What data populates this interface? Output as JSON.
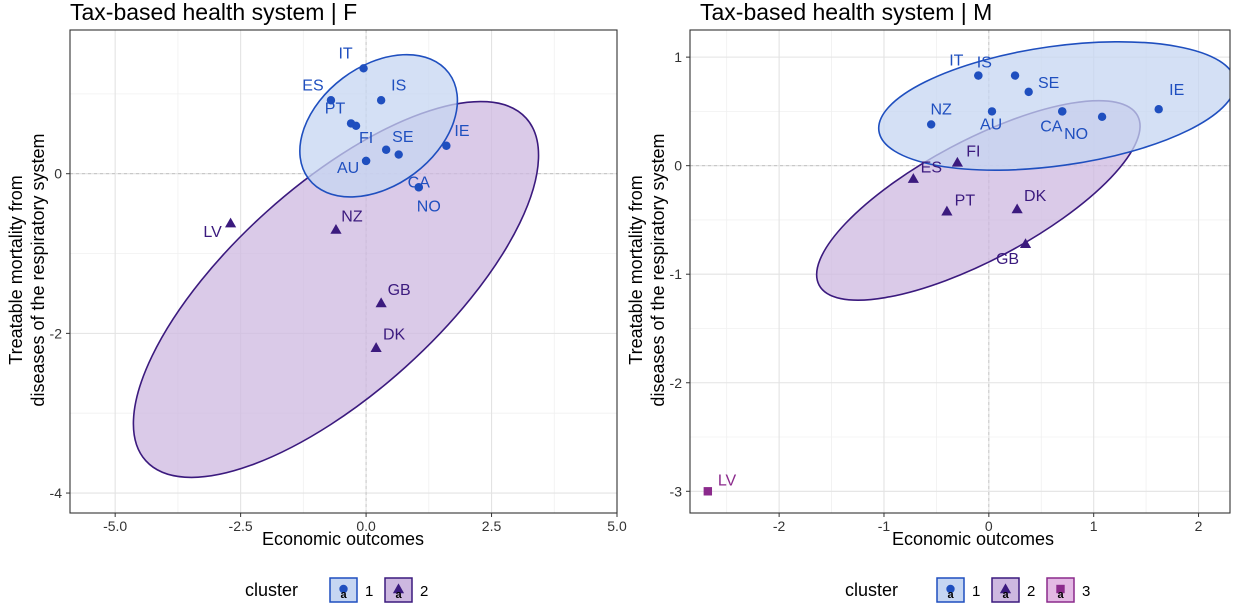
{
  "clusters": {
    "1": {
      "color": "#1f4fbf",
      "fill": "#c6d6f2",
      "shape": "circle"
    },
    "2": {
      "color": "#3b1a7e",
      "fill": "#cdb8e0",
      "shape": "triangle"
    },
    "3": {
      "color": "#8b2a8c",
      "fill": "#e3b9e4",
      "shape": "square"
    }
  },
  "chart_data": [
    {
      "type": "scatter",
      "title": "Tax-based health system | F",
      "xlabel": "Economic outcomes",
      "ylabel": "Treatable mortality from diseases of the respiratory system",
      "xlim": [
        -5.9,
        5.0
      ],
      "ylim": [
        -4.25,
        1.8
      ],
      "xticks": [
        -5.0,
        -2.5,
        0.0,
        2.5,
        5.0
      ],
      "xtick_labels": [
        "-5.0",
        "-2.5",
        "0.0",
        "2.5",
        "5.0"
      ],
      "yticks": [
        -4,
        -2,
        0
      ],
      "ytick_labels": [
        "-4",
        "-2",
        "0"
      ],
      "grid": true,
      "legend": {
        "title": "cluster",
        "entries": [
          "1",
          "2"
        ],
        "position": "bottom"
      },
      "ellipses": [
        {
          "cluster": "1",
          "center": [
            0.25,
            0.6
          ],
          "rx": 1.75,
          "ry": 0.83,
          "angle_deg": -37
        },
        {
          "cluster": "2",
          "center": [
            -0.6,
            -1.45
          ],
          "rx": 5.1,
          "ry": 1.45,
          "angle_deg": -42
        }
      ],
      "points": [
        {
          "label": "IT",
          "x": -0.05,
          "y": 1.32,
          "cluster": "1"
        },
        {
          "label": "ES",
          "x": -0.7,
          "y": 0.92,
          "cluster": "1"
        },
        {
          "label": "IS",
          "x": 0.3,
          "y": 0.92,
          "cluster": "1"
        },
        {
          "label": "PT",
          "x": -0.3,
          "y": 0.63,
          "cluster": "1"
        },
        {
          "label": "",
          "x": -0.2,
          "y": 0.6,
          "cluster": "1"
        },
        {
          "label": "SE",
          "x": 0.4,
          "y": 0.3,
          "cluster": "1"
        },
        {
          "label": "",
          "x": 0.65,
          "y": 0.24,
          "cluster": "1"
        },
        {
          "label": "FI",
          "x": 0.0,
          "y": 0.16,
          "cluster": "1"
        },
        {
          "label": "IE",
          "x": 1.6,
          "y": 0.35,
          "cluster": "1"
        },
        {
          "label": "CA",
          "x": 1.05,
          "y": -0.17,
          "cluster": "1"
        },
        {
          "label": "AU",
          "x": 0.0,
          "y": 0.16,
          "cluster": "1"
        },
        {
          "label": "NO",
          "x": 1.05,
          "y": -0.17,
          "cluster": "1"
        },
        {
          "label": "LV",
          "x": -2.7,
          "y": -0.62,
          "cluster": "2"
        },
        {
          "label": "NZ",
          "x": -0.6,
          "y": -0.7,
          "cluster": "2"
        },
        {
          "label": "GB",
          "x": 0.3,
          "y": -1.62,
          "cluster": "2"
        },
        {
          "label": "DK",
          "x": 0.2,
          "y": -2.18,
          "cluster": "2"
        }
      ]
    },
    {
      "type": "scatter",
      "title": "Tax-based health system | M",
      "xlabel": "Economic outcomes",
      "ylabel": "Treatable mortality from diseases of the respiratory system",
      "xlim": [
        -2.85,
        2.3
      ],
      "ylim": [
        -3.2,
        1.25
      ],
      "xticks": [
        -2,
        -1,
        0,
        1,
        2
      ],
      "xtick_labels": [
        "-2",
        "-1",
        "0",
        "1",
        "2"
      ],
      "yticks": [
        -3,
        -2,
        -1,
        0,
        1
      ],
      "ytick_labels": [
        "-3",
        "-2",
        "-1",
        "0",
        "1"
      ],
      "grid": true,
      "legend": {
        "title": "cluster",
        "entries": [
          "1",
          "2",
          "3"
        ],
        "position": "bottom"
      },
      "ellipses": [
        {
          "cluster": "1",
          "center": [
            0.65,
            0.55
          ],
          "rx": 1.75,
          "ry": 0.55,
          "angle_deg": -8
        },
        {
          "cluster": "2",
          "center": [
            -0.1,
            -0.32
          ],
          "rx": 1.72,
          "ry": 0.55,
          "angle_deg": -28
        }
      ],
      "points": [
        {
          "label": "IS",
          "x": -0.1,
          "y": 0.83,
          "cluster": "1"
        },
        {
          "label": "IT",
          "x": -0.1,
          "y": 0.83,
          "cluster": "1"
        },
        {
          "label": "",
          "x": 0.25,
          "y": 0.83,
          "cluster": "1"
        },
        {
          "label": "SE",
          "x": 0.38,
          "y": 0.68,
          "cluster": "1"
        },
        {
          "label": "AU",
          "x": 0.03,
          "y": 0.5,
          "cluster": "1"
        },
        {
          "label": "",
          "x": 0.7,
          "y": 0.5,
          "cluster": "1"
        },
        {
          "label": "CA",
          "x": 0.7,
          "y": 0.5,
          "cluster": "1"
        },
        {
          "label": "NO",
          "x": 1.08,
          "y": 0.45,
          "cluster": "1"
        },
        {
          "label": "IE",
          "x": 1.62,
          "y": 0.52,
          "cluster": "1"
        },
        {
          "label": "NZ",
          "x": -0.55,
          "y": 0.38,
          "cluster": "1"
        },
        {
          "label": "FI",
          "x": -0.3,
          "y": 0.03,
          "cluster": "2"
        },
        {
          "label": "ES",
          "x": -0.72,
          "y": -0.12,
          "cluster": "2"
        },
        {
          "label": "PT",
          "x": -0.4,
          "y": -0.42,
          "cluster": "2"
        },
        {
          "label": "DK",
          "x": 0.27,
          "y": -0.4,
          "cluster": "2"
        },
        {
          "label": "GB",
          "x": 0.35,
          "y": -0.72,
          "cluster": "2"
        },
        {
          "label": "LV",
          "x": -2.68,
          "y": -3.0,
          "cluster": "3"
        }
      ]
    }
  ]
}
